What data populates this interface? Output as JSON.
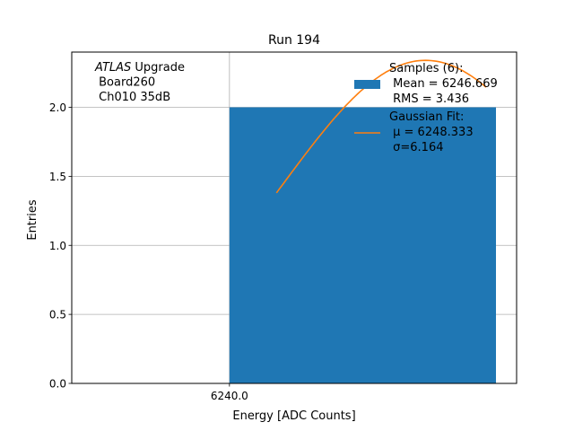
{
  "chart_data": {
    "type": "bar",
    "title": "Run 194",
    "xlabel": "Energy [ADC Counts]",
    "ylabel": "Entries",
    "xlim": [
      6233.3,
      6252.2
    ],
    "ylim": [
      0,
      2.4
    ],
    "grid": true,
    "x_ticks": [
      {
        "value": 6240.0,
        "label": "6240.0"
      }
    ],
    "y_ticks": [
      {
        "value": 0.0,
        "label": "0.0"
      },
      {
        "value": 0.5,
        "label": "0.5"
      },
      {
        "value": 1.0,
        "label": "1.0"
      },
      {
        "value": 1.5,
        "label": "1.5"
      },
      {
        "value": 2.0,
        "label": "2.0"
      }
    ],
    "bars": [
      {
        "x0": 6240.0,
        "x1": 6252.8,
        "value": 2.0,
        "color": "#1f77b4"
      }
    ],
    "fit_curve": {
      "type": "gaussian",
      "color": "#ff7f0e",
      "mu": 6248.333,
      "sigma": 6.164,
      "amplitude": 2.34,
      "x_range": [
        6242.0,
        6250.9
      ]
    },
    "annotation": {
      "lines": [
        {
          "italic": "ATLAS",
          "rest": " Upgrade"
        },
        {
          "italic": "",
          "rest": " Board260"
        },
        {
          "italic": "",
          "rest": " Ch010 35dB"
        }
      ]
    },
    "legend": {
      "placement": "top-right",
      "entries": [
        {
          "kind": "patch",
          "color": "#1f77b4",
          "lines": [
            "Samples (6):",
            " Mean = 6246.669",
            " RMS = 3.436"
          ]
        },
        {
          "kind": "line",
          "color": "#ff7f0e",
          "lines": [
            "Gaussian Fit:",
            " μ = 6248.333",
            " σ=6.164"
          ]
        }
      ]
    }
  }
}
